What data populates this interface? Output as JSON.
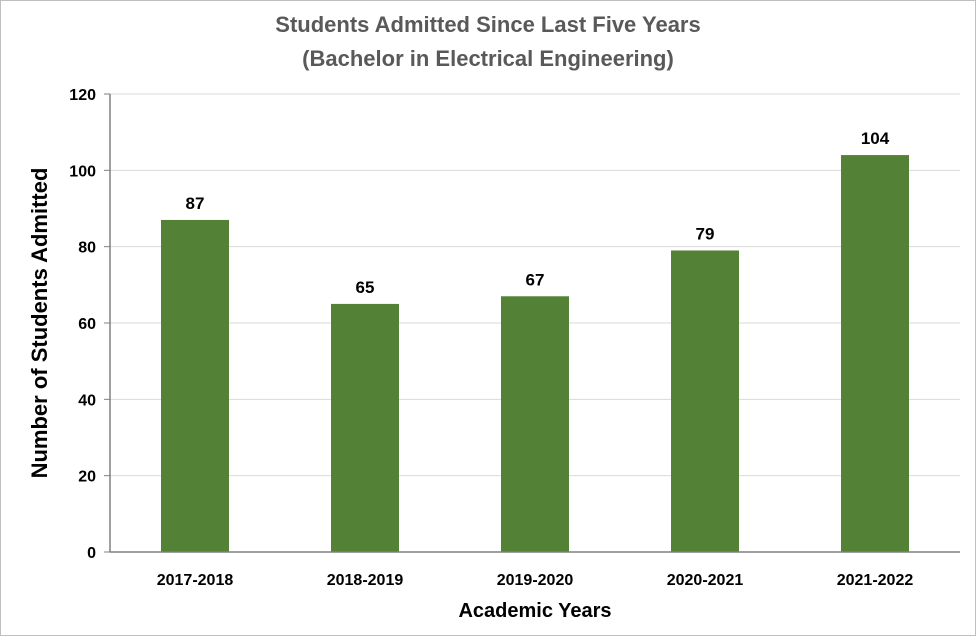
{
  "chart_data": {
    "type": "bar",
    "title": "Students Admitted  Since Last Five Years",
    "subtitle": "(Bachelor in Electrical Engineering)",
    "xlabel": "Academic Years",
    "ylabel": "Number of Students Admitted",
    "categories": [
      "2017-2018",
      "2018-2019",
      "2019-2020",
      "2020-2021",
      "2021-2022"
    ],
    "values": [
      87,
      65,
      67,
      79,
      104
    ],
    "data_labels": [
      "87",
      "65",
      "67",
      "79",
      "104"
    ],
    "ylim": [
      0,
      120
    ],
    "yticks": [
      "0",
      "20",
      "40",
      "60",
      "80",
      "100",
      "120"
    ],
    "grid": true,
    "bar_color": "#538135",
    "legend": "none"
  }
}
